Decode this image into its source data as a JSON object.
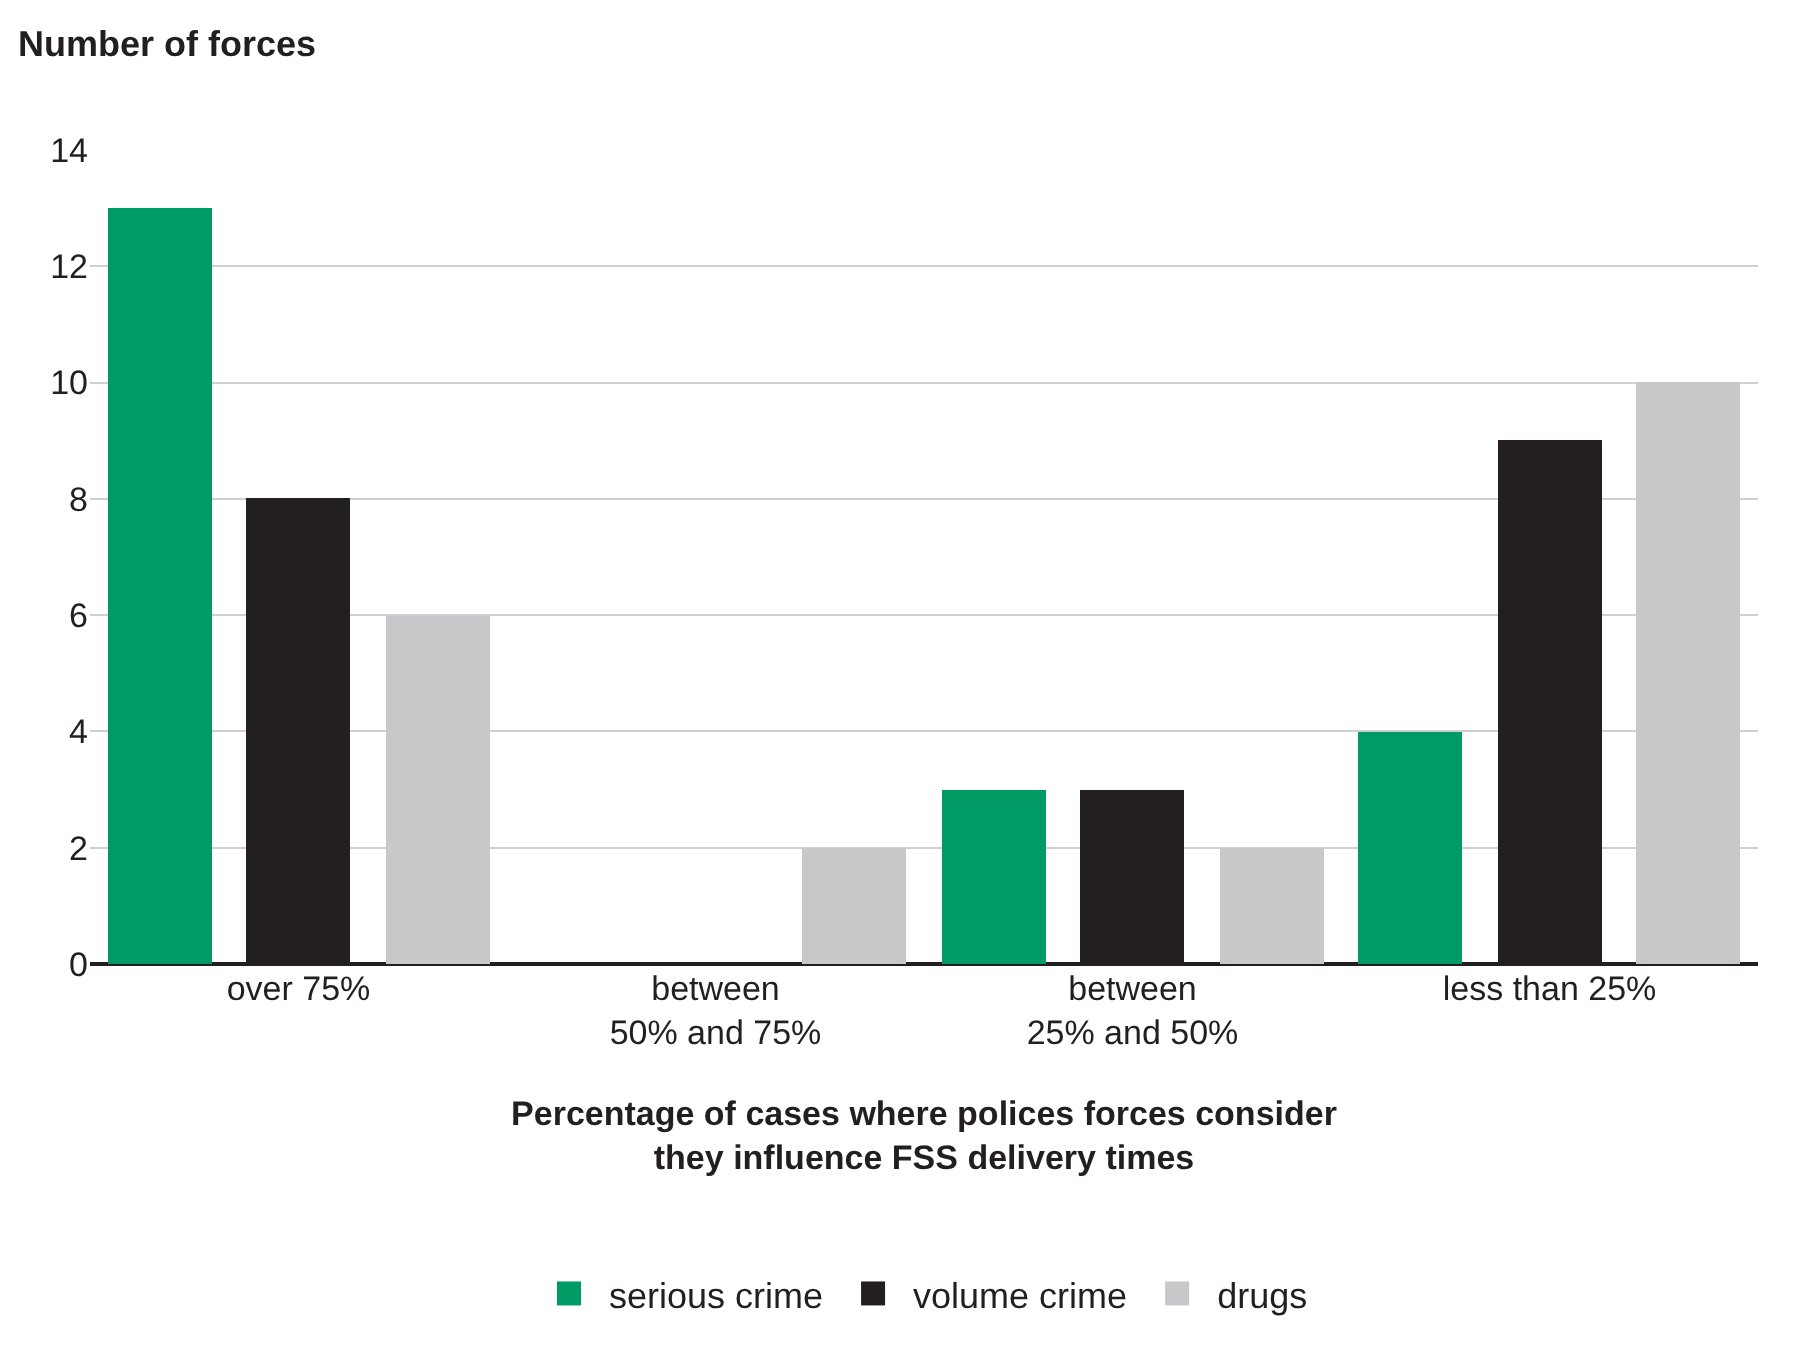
{
  "chart_data": {
    "type": "bar",
    "ylabel": "Number of forces",
    "xlabel": "Percentage of cases where polices forces consider\nthey influence FSS delivery times",
    "categories": [
      "over 75%",
      "between\n50% and 75%",
      "between\n25% and 50%",
      "less than 25%"
    ],
    "series": [
      {
        "name": "serious crime",
        "color": "#009b65",
        "values": [
          13,
          0,
          3,
          4
        ]
      },
      {
        "name": "volume crime",
        "color": "#231f20",
        "values": [
          8,
          0,
          3,
          9
        ]
      },
      {
        "name": "drugs",
        "color": "#c8c8ca",
        "values": [
          6,
          2,
          2,
          10
        ]
      }
    ],
    "ylim": [
      0,
      14
    ],
    "yticks": [
      0,
      2,
      4,
      6,
      8,
      10,
      12,
      14
    ],
    "grid": "y",
    "legend": "bottom"
  }
}
